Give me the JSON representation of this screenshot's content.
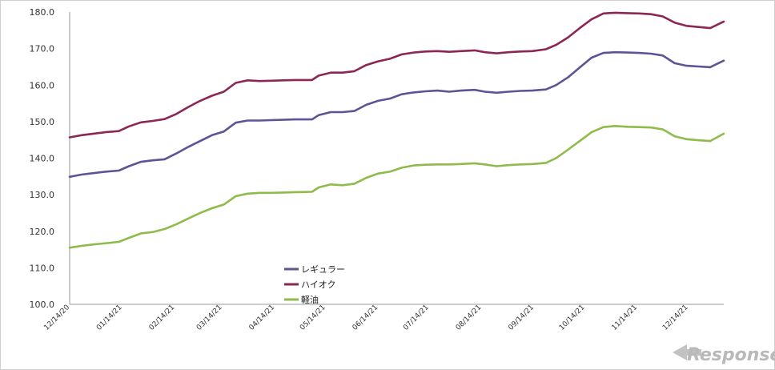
{
  "chart_data": {
    "type": "line",
    "title": "",
    "xlabel": "",
    "ylabel": "",
    "ylim": [
      100,
      180
    ],
    "yticks": [
      "100.0",
      "110.0",
      "120.0",
      "130.0",
      "140.0",
      "150.0",
      "160.0",
      "170.0",
      "180.0"
    ],
    "xticks": [
      "12/14/20",
      "01/14/21",
      "02/14/21",
      "03/14/21",
      "04/14/21",
      "05/14/21",
      "06/14/21",
      "07/14/21",
      "08/14/21",
      "09/14/21",
      "10/14/21",
      "11/14/21",
      "12/14/21"
    ],
    "grid": false,
    "legend_position": "bottom-center",
    "x": [
      "2020-12-14",
      "2020-12-21",
      "2020-12-28",
      "2021-01-04",
      "2021-01-12",
      "2021-01-18",
      "2021-01-25",
      "2021-02-01",
      "2021-02-08",
      "2021-02-15",
      "2021-02-22",
      "2021-03-01",
      "2021-03-08",
      "2021-03-15",
      "2021-03-22",
      "2021-03-29",
      "2021-04-05",
      "2021-04-12",
      "2021-04-19",
      "2021-04-26",
      "2021-05-06",
      "2021-05-10",
      "2021-05-17",
      "2021-05-24",
      "2021-05-31",
      "2021-06-07",
      "2021-06-14",
      "2021-06-21",
      "2021-06-28",
      "2021-07-05",
      "2021-07-12",
      "2021-07-19",
      "2021-07-26",
      "2021-08-02",
      "2021-08-10",
      "2021-08-16",
      "2021-08-23",
      "2021-08-30",
      "2021-09-06",
      "2021-09-13",
      "2021-09-21",
      "2021-09-27",
      "2021-10-04",
      "2021-10-11",
      "2021-10-18",
      "2021-10-25",
      "2021-11-01",
      "2021-11-08",
      "2021-11-15",
      "2021-11-22",
      "2021-11-29",
      "2021-12-06",
      "2021-12-13",
      "2021-12-20",
      "2021-12-27",
      "2022-01-04"
    ],
    "series": [
      {
        "name": "レギュラー",
        "color": "#5b5596",
        "values": [
          134.9,
          135.5,
          135.9,
          136.3,
          136.6,
          137.8,
          139.0,
          139.4,
          139.7,
          141.3,
          143.1,
          144.7,
          146.3,
          147.3,
          149.7,
          150.3,
          150.3,
          150.4,
          150.5,
          150.6,
          150.6,
          151.8,
          152.6,
          152.6,
          152.9,
          154.6,
          155.7,
          156.3,
          157.5,
          158.0,
          158.3,
          158.5,
          158.2,
          158.5,
          158.7,
          158.2,
          157.9,
          158.2,
          158.4,
          158.5,
          158.8,
          160.0,
          162.1,
          164.8,
          167.5,
          168.8,
          169.0,
          168.9,
          168.8,
          168.6,
          168.1,
          166.0,
          165.3,
          165.1,
          164.9,
          166.7
        ]
      },
      {
        "name": "ハイオク",
        "color": "#8c2655",
        "values": [
          145.7,
          146.3,
          146.7,
          147.1,
          147.4,
          148.7,
          149.8,
          150.2,
          150.7,
          152.1,
          154.0,
          155.7,
          157.1,
          158.2,
          160.6,
          161.3,
          161.1,
          161.2,
          161.3,
          161.4,
          161.4,
          162.6,
          163.4,
          163.4,
          163.8,
          165.5,
          166.5,
          167.2,
          168.4,
          168.9,
          169.2,
          169.3,
          169.1,
          169.3,
          169.5,
          169.0,
          168.7,
          169.0,
          169.2,
          169.3,
          169.8,
          171.0,
          173.0,
          175.6,
          178.0,
          179.6,
          179.8,
          179.7,
          179.6,
          179.4,
          178.8,
          177.1,
          176.2,
          175.9,
          175.6,
          177.4
        ]
      },
      {
        "name": "軽油",
        "color": "#8fbb4b",
        "values": [
          115.5,
          116.0,
          116.4,
          116.7,
          117.1,
          118.2,
          119.4,
          119.8,
          120.6,
          121.9,
          123.5,
          125.0,
          126.3,
          127.3,
          129.6,
          130.3,
          130.5,
          130.5,
          130.6,
          130.7,
          130.8,
          132.0,
          132.8,
          132.6,
          133.0,
          134.6,
          135.8,
          136.3,
          137.4,
          138.0,
          138.2,
          138.3,
          138.3,
          138.4,
          138.6,
          138.3,
          137.8,
          138.1,
          138.3,
          138.4,
          138.7,
          140.0,
          142.3,
          144.7,
          147.1,
          148.5,
          148.8,
          148.6,
          148.5,
          148.4,
          147.9,
          146.0,
          145.2,
          144.9,
          144.7,
          146.7
        ]
      }
    ]
  },
  "watermark": {
    "text": "Response."
  }
}
